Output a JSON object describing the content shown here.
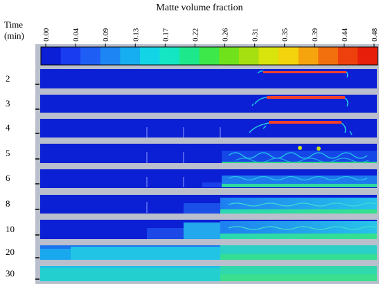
{
  "title": "Matte volume fraction",
  "time_header": [
    "Time",
    "(min)"
  ],
  "colorbar": {
    "ticks": [
      "0.00",
      "0.04",
      "0.09",
      "0.13",
      "0.17",
      "0.22",
      "0.26",
      "0.31",
      "0.35",
      "0.39",
      "0.44",
      "0.48"
    ],
    "colors": [
      "#0a1fd6",
      "#1a3cf0",
      "#1f5ef5",
      "#1e86f4",
      "#16aef0",
      "#12d4e6",
      "#14e6c4",
      "#1ee88c",
      "#3ce84a",
      "#6fe21c",
      "#a6e010",
      "#d8e40c",
      "#f3d40c",
      "#f6a40e",
      "#f3700e",
      "#ee400c",
      "#e61e0a"
    ]
  },
  "rows": [
    {
      "time": "2"
    },
    {
      "time": "3"
    },
    {
      "time": "4"
    },
    {
      "time": "5"
    },
    {
      "time": "6"
    },
    {
      "time": "8"
    },
    {
      "time": "10"
    },
    {
      "time": "20"
    },
    {
      "time": "30"
    }
  ]
}
